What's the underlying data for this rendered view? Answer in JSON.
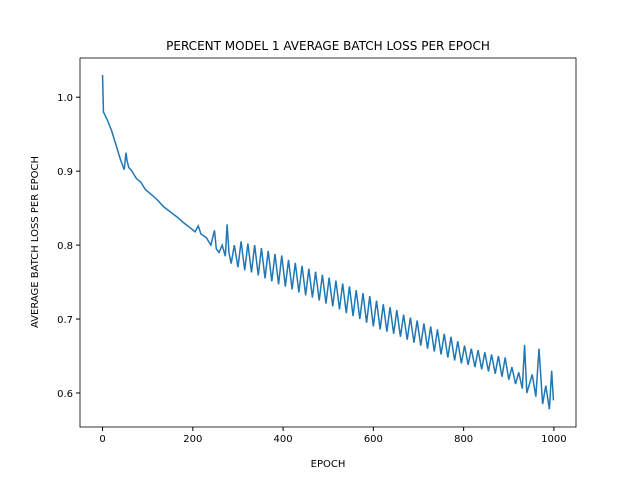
{
  "chart_data": {
    "type": "line",
    "title": "PERCENT MODEL 1 AVERAGE BATCH LOSS PER EPOCH",
    "x_label": "EPOCH",
    "y_label": "AVERAGE BATCH LOSS PER EPOCH",
    "xlim": [
      -49.95,
      1048.95
    ],
    "xticks": [
      0,
      200,
      400,
      600,
      800,
      1000
    ],
    "ylim": [
      0.554,
      1.053
    ],
    "yticks": [
      0.6,
      0.7,
      0.8,
      0.9,
      {
        "value": 1.0,
        "label": "1.0"
      }
    ],
    "series": [
      {
        "color": "#1f77b4",
        "x": [
          0,
          2,
          10,
          20,
          30,
          40,
          48,
          52,
          54,
          58,
          65,
          75,
          85,
          95,
          105,
          120,
          135,
          150,
          165,
          180,
          195,
          205,
          212,
          218,
          230,
          240,
          248,
          252,
          258,
          265,
          272,
          276,
          280,
          285,
          292,
          300,
          307,
          315,
          322,
          330,
          337,
          345,
          352,
          360,
          367,
          375,
          382,
          390,
          397,
          405,
          412,
          420,
          427,
          435,
          442,
          450,
          457,
          465,
          472,
          480,
          487,
          495,
          502,
          510,
          517,
          525,
          532,
          540,
          547,
          555,
          562,
          570,
          577,
          585,
          592,
          600,
          607,
          615,
          622,
          630,
          637,
          645,
          652,
          660,
          667,
          675,
          682,
          690,
          697,
          705,
          712,
          720,
          727,
          735,
          742,
          750,
          757,
          765,
          772,
          780,
          787,
          795,
          802,
          810,
          817,
          825,
          832,
          840,
          847,
          855,
          862,
          870,
          877,
          885,
          892,
          900,
          907,
          915,
          922,
          930,
          935,
          940,
          952,
          960,
          967,
          975,
          982,
          990,
          995,
          999
        ],
        "values": [
          1.03,
          0.98,
          0.97,
          0.955,
          0.935,
          0.915,
          0.902,
          0.925,
          0.915,
          0.905,
          0.9,
          0.89,
          0.885,
          0.875,
          0.87,
          0.862,
          0.852,
          0.845,
          0.838,
          0.83,
          0.823,
          0.818,
          0.826,
          0.815,
          0.81,
          0.8,
          0.82,
          0.795,
          0.79,
          0.8,
          0.785,
          0.828,
          0.79,
          0.775,
          0.8,
          0.77,
          0.805,
          0.766,
          0.802,
          0.763,
          0.8,
          0.759,
          0.796,
          0.755,
          0.792,
          0.751,
          0.788,
          0.747,
          0.786,
          0.744,
          0.78,
          0.74,
          0.776,
          0.736,
          0.772,
          0.732,
          0.768,
          0.729,
          0.764,
          0.725,
          0.76,
          0.721,
          0.756,
          0.717,
          0.752,
          0.713,
          0.748,
          0.708,
          0.744,
          0.704,
          0.739,
          0.7,
          0.735,
          0.695,
          0.731,
          0.69,
          0.725,
          0.686,
          0.72,
          0.683,
          0.716,
          0.68,
          0.712,
          0.676,
          0.706,
          0.672,
          0.702,
          0.668,
          0.698,
          0.664,
          0.694,
          0.66,
          0.69,
          0.656,
          0.686,
          0.652,
          0.68,
          0.648,
          0.676,
          0.644,
          0.67,
          0.64,
          0.664,
          0.638,
          0.66,
          0.635,
          0.658,
          0.632,
          0.655,
          0.629,
          0.652,
          0.626,
          0.65,
          0.622,
          0.648,
          0.618,
          0.635,
          0.612,
          0.628,
          0.606,
          0.665,
          0.6,
          0.625,
          0.595,
          0.66,
          0.585,
          0.61,
          0.578,
          0.63,
          0.59
        ]
      }
    ]
  }
}
